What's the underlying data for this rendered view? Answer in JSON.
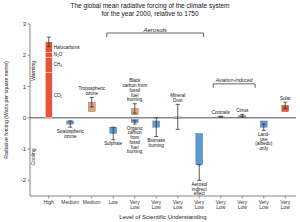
{
  "chart_data": {
    "type": "bar",
    "title": "The global mean radiative forcing of the climate system\nfor the year 2000, relative to 1750",
    "x_label": "Level of Scientific Understanding",
    "y_label": "Radiative forcing (Watts per square metre)",
    "categories": [
      "High",
      "Medium",
      "Medium",
      "Low",
      "Very\nLow",
      "Very\nLow",
      "Very\nLow",
      "Very\nLow",
      "Very\nLow",
      "Very\nLow",
      "Very\nLow",
      "Very\nLow"
    ],
    "ylim": [
      -2.5,
      3.0
    ],
    "yticks": [
      -2,
      -1,
      0,
      1,
      2,
      3
    ],
    "grid": false,
    "bars": [
      {
        "stacked": true,
        "color": "#e8543a",
        "error": 0.15,
        "parts": [
          {
            "name": "CO₂",
            "value": 1.46
          },
          {
            "name": "CH₄",
            "value": 0.48
          },
          {
            "name": "N₂O",
            "value": 0.15
          },
          {
            "name": "Halocarbons",
            "value": 0.34
          }
        ]
      },
      {
        "parts": [
          {
            "name": "Stratospheric\nozone",
            "low": -0.2,
            "high": -0.1,
            "err_low": 0.1,
            "err_high": 0.1,
            "color": "#5b9bd5"
          }
        ]
      },
      {
        "parts": [
          {
            "name": "Tropospheric\nozone",
            "low": 0.2,
            "high": 0.5,
            "err_low": 0.15,
            "err_high": 0.15,
            "color": "#e8a07a"
          }
        ]
      },
      {
        "parts": [
          {
            "name": "Sulphate",
            "low": -0.5,
            "high": -0.3,
            "err_low": 0.2,
            "err_high": 0.2,
            "color": "#5b9bd5"
          }
        ]
      },
      {
        "parts": [
          {
            "name": "Black\ncarbon from\nfossil\nfuel\nburning",
            "low": 0.1,
            "high": 0.3,
            "err_low": 0.15,
            "err_high": 0.15,
            "color": "#e8a07a"
          },
          {
            "name": "Organic\ncarbon\nfrom\nfossil\nfuel\nburning",
            "low": -0.15,
            "high": -0.05,
            "err_low": 0.05,
            "err_high": 0.05,
            "color": "#5b9bd5"
          }
        ]
      },
      {
        "parts": [
          {
            "name": "Biomass\nburning",
            "low": -0.3,
            "high": -0.1,
            "err_low": 0.3,
            "err_high": 0.3,
            "color": "#5b9bd5"
          }
        ]
      },
      {
        "parts": [
          {
            "name": "Mineral\nDust",
            "low": -0.03,
            "high": 0.03,
            "err_low": 0.4,
            "err_high": 0.4,
            "color": "#e8a07a"
          }
        ]
      },
      {
        "parts": [
          {
            "name": "Aerosol\nindirect\neffect",
            "low": -1.5,
            "high": -0.5,
            "err_low": 0.5,
            "err_high": 0.0,
            "color": "#5b9bd5"
          }
        ]
      },
      {
        "parts": [
          {
            "name": "Contrails",
            "low": 0.005,
            "high": 0.035,
            "err_low": 0.015,
            "err_high": 0.015,
            "color": "#e8a07a"
          }
        ]
      },
      {
        "parts": [
          {
            "name": "Cirrus",
            "low": 0.01,
            "high": 0.07,
            "err_low": 0.04,
            "err_high": 0.04,
            "color": "#5b9bd5"
          }
        ]
      },
      {
        "parts": [
          {
            "name": "Land-\nuse\n(albedo)\nonly",
            "low": -0.3,
            "high": -0.1,
            "err_low": 0.1,
            "err_high": 0.1,
            "color": "#5b9bd5"
          }
        ]
      },
      {
        "parts": [
          {
            "name": "Solar",
            "low": 0.2,
            "high": 0.4,
            "err_low": 0.1,
            "err_high": 0.1,
            "color": "#e8543a"
          }
        ]
      }
    ],
    "annotations": [
      "Warming",
      "Cooling",
      "Aerosols",
      "Aviation-induced"
    ]
  }
}
